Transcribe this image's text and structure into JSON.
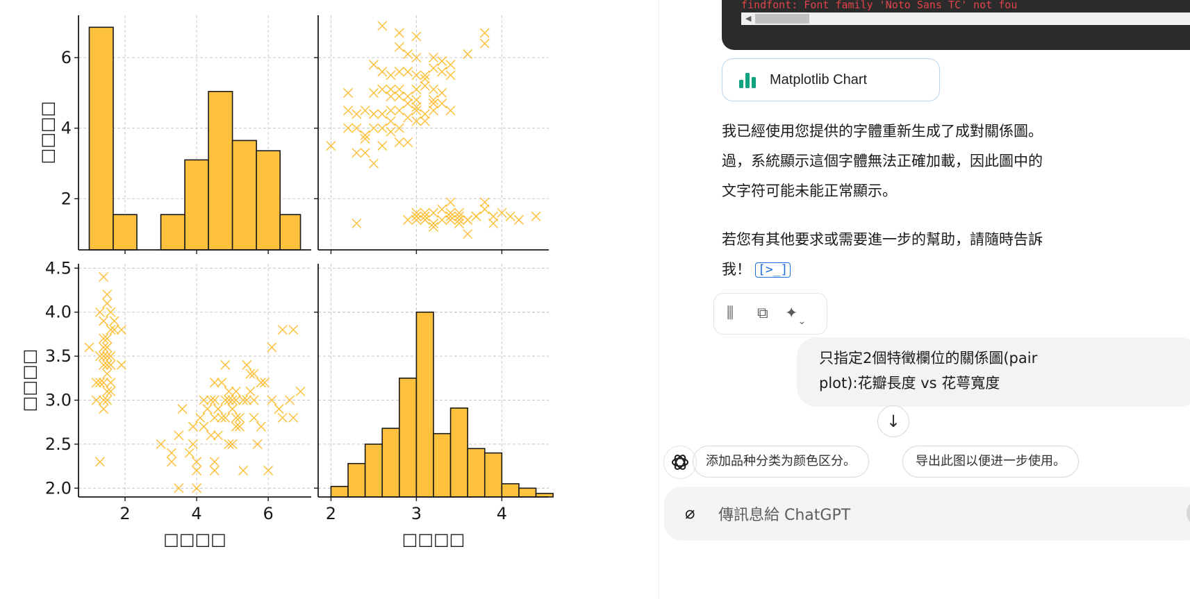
{
  "chart_data": {
    "type": "pair-plot",
    "panels": [
      {
        "position": "top-left",
        "type": "histogram",
        "bins": [
          [
            1.0,
            1.67,
            37
          ],
          [
            1.67,
            2.33,
            13
          ],
          [
            2.33,
            3.0,
            0
          ],
          [
            3.0,
            3.67,
            3
          ],
          [
            3.67,
            4.33,
            8
          ],
          [
            4.33,
            5.0,
            26
          ],
          [
            5.0,
            5.67,
            29
          ],
          [
            5.67,
            6.33,
            18
          ],
          [
            6.33,
            6.9,
            11
          ]
        ],
        "density_values": [
          6.86,
          1.55,
          0,
          1.55,
          3.1,
          5.04,
          3.65,
          3.36,
          1.55
        ],
        "xlim": [
          0.7,
          7.2
        ],
        "ylim": [
          0.55,
          7.2
        ],
        "xticks": [
          2,
          4,
          6
        ],
        "yticks": [
          2,
          4,
          6
        ],
        "ylabel": "□□□□",
        "grid": true
      },
      {
        "position": "top-right",
        "type": "scatter",
        "marker": "x",
        "xlim": [
          1.85,
          4.55
        ],
        "ylim": [
          0.55,
          7.2
        ],
        "xticks": [
          2,
          3,
          4
        ],
        "yticks": [
          2,
          4,
          6
        ],
        "grid": true,
        "points": [
          [
            2.6,
            6.9
          ],
          [
            2.8,
            6.7
          ],
          [
            3.0,
            6.6
          ],
          [
            2.8,
            6.3
          ],
          [
            2.9,
            6.1
          ],
          [
            3.0,
            6.0
          ],
          [
            3.2,
            6.0
          ],
          [
            3.3,
            5.9
          ],
          [
            3.4,
            5.8
          ],
          [
            3.6,
            6.1
          ],
          [
            3.8,
            6.7
          ],
          [
            3.8,
            6.4
          ],
          [
            2.5,
            5.8
          ],
          [
            2.6,
            5.6
          ],
          [
            2.7,
            5.5
          ],
          [
            2.8,
            5.6
          ],
          [
            2.9,
            5.6
          ],
          [
            3.0,
            5.5
          ],
          [
            3.1,
            5.5
          ],
          [
            3.2,
            5.7
          ],
          [
            3.3,
            5.6
          ],
          [
            3.4,
            5.5
          ],
          [
            3.1,
            5.4
          ],
          [
            2.6,
            5.1
          ],
          [
            2.7,
            5.1
          ],
          [
            2.8,
            5.1
          ],
          [
            3.0,
            5.1
          ],
          [
            3.1,
            5.2
          ],
          [
            3.2,
            5.1
          ],
          [
            2.5,
            5.0
          ],
          [
            2.7,
            4.9
          ],
          [
            2.8,
            4.9
          ],
          [
            2.9,
            4.9
          ],
          [
            3.0,
            4.8
          ],
          [
            3.2,
            4.8
          ],
          [
            3.3,
            5.0
          ],
          [
            3.0,
            4.6
          ],
          [
            3.2,
            4.7
          ],
          [
            2.2,
            5.0
          ],
          [
            2.2,
            4.5
          ],
          [
            2.3,
            4.4
          ],
          [
            2.4,
            4.5
          ],
          [
            2.5,
            4.4
          ],
          [
            2.6,
            4.4
          ],
          [
            2.7,
            4.5
          ],
          [
            2.8,
            4.5
          ],
          [
            2.9,
            4.3
          ],
          [
            3.0,
            4.2
          ],
          [
            2.7,
            4.2
          ],
          [
            2.8,
            4.0
          ],
          [
            2.9,
            4.7
          ],
          [
            3.0,
            4.5
          ],
          [
            3.1,
            4.4
          ],
          [
            3.2,
            4.5
          ],
          [
            3.3,
            4.7
          ],
          [
            3.4,
            4.5
          ],
          [
            2.3,
            4.0
          ],
          [
            2.4,
            3.8
          ],
          [
            2.5,
            4.0
          ],
          [
            2.6,
            4.0
          ],
          [
            2.5,
            3.0
          ],
          [
            2.4,
            3.3
          ],
          [
            2.3,
            3.3
          ],
          [
            2.0,
            3.5
          ],
          [
            2.6,
            3.5
          ],
          [
            2.7,
            3.9
          ],
          [
            2.8,
            3.6
          ],
          [
            2.9,
            3.6
          ],
          [
            3.1,
            4.2
          ],
          [
            2.2,
            4.0
          ],
          [
            2.4,
            3.7
          ],
          [
            2.3,
            1.3
          ],
          [
            3.0,
            1.4
          ],
          [
            3.1,
            1.5
          ],
          [
            3.2,
            1.3
          ],
          [
            3.3,
            1.4
          ],
          [
            3.4,
            1.6
          ],
          [
            3.5,
            1.5
          ],
          [
            3.6,
            1.4
          ],
          [
            3.7,
            1.5
          ],
          [
            3.8,
            1.7
          ],
          [
            3.9,
            1.5
          ],
          [
            4.0,
            1.6
          ],
          [
            4.1,
            1.5
          ],
          [
            4.2,
            1.4
          ],
          [
            4.4,
            1.5
          ],
          [
            3.2,
            1.6
          ],
          [
            3.4,
            1.9
          ],
          [
            3.5,
            1.3
          ],
          [
            3.6,
            1.0
          ],
          [
            3.8,
            1.9
          ],
          [
            2.9,
            1.4
          ],
          [
            3.0,
            1.6
          ],
          [
            3.1,
            1.4
          ],
          [
            3.3,
            1.7
          ],
          [
            3.4,
            1.4
          ],
          [
            3.5,
            1.6
          ],
          [
            3.6,
            1.4
          ],
          [
            3.7,
            1.5
          ],
          [
            3.9,
            1.3
          ],
          [
            3.0,
            1.5
          ],
          [
            3.2,
            1.2
          ],
          [
            3.4,
            1.5
          ],
          [
            3.5,
            1.4
          ],
          [
            3.1,
            1.6
          ]
        ]
      },
      {
        "position": "bottom-left",
        "type": "scatter",
        "marker": "x",
        "xlim": [
          0.7,
          7.2
        ],
        "ylim": [
          1.9,
          4.55
        ],
        "xticks": [
          2,
          4,
          6
        ],
        "yticks": [
          2.0,
          2.5,
          3.0,
          3.5,
          4.0,
          4.5
        ],
        "xlabel": "□□□□",
        "ylabel": "□□□□",
        "grid": true,
        "points": [
          [
            1.4,
            4.4
          ],
          [
            1.5,
            4.2
          ],
          [
            1.5,
            4.1
          ],
          [
            1.6,
            4.0
          ],
          [
            1.3,
            4.0
          ],
          [
            1.4,
            3.9
          ],
          [
            1.7,
            3.9
          ],
          [
            1.6,
            3.8
          ],
          [
            1.9,
            3.8
          ],
          [
            1.7,
            3.8
          ],
          [
            1.4,
            3.7
          ],
          [
            1.5,
            3.7
          ],
          [
            1.5,
            3.6
          ],
          [
            1.4,
            3.6
          ],
          [
            1.6,
            3.5
          ],
          [
            1.3,
            3.5
          ],
          [
            1.4,
            3.5
          ],
          [
            1.5,
            3.4
          ],
          [
            1.6,
            3.4
          ],
          [
            1.9,
            3.4
          ],
          [
            1.4,
            3.4
          ],
          [
            1.5,
            3.3
          ],
          [
            1.6,
            3.2
          ],
          [
            1.3,
            3.2
          ],
          [
            1.4,
            3.2
          ],
          [
            1.5,
            3.1
          ],
          [
            1.6,
            3.1
          ],
          [
            1.4,
            3.0
          ],
          [
            1.5,
            3.0
          ],
          [
            1.2,
            3.0
          ],
          [
            1.4,
            2.9
          ],
          [
            1.3,
            2.3
          ],
          [
            1.0,
            3.6
          ],
          [
            1.5,
            3.5
          ],
          [
            1.2,
            3.2
          ],
          [
            3.3,
            2.4
          ],
          [
            3.5,
            2.0
          ],
          [
            3.0,
            2.5
          ],
          [
            3.3,
            2.3
          ],
          [
            3.5,
            2.6
          ],
          [
            3.6,
            2.9
          ],
          [
            3.8,
            2.4
          ],
          [
            3.9,
            2.7
          ],
          [
            3.9,
            2.5
          ],
          [
            4.0,
            2.0
          ],
          [
            4.0,
            2.2
          ],
          [
            4.0,
            2.3
          ],
          [
            4.1,
            2.8
          ],
          [
            4.2,
            3.0
          ],
          [
            4.3,
            2.9
          ],
          [
            4.4,
            3.0
          ],
          [
            4.4,
            2.6
          ],
          [
            4.5,
            2.2
          ],
          [
            4.5,
            2.3
          ],
          [
            4.5,
            2.8
          ],
          [
            4.5,
            3.0
          ],
          [
            4.5,
            3.2
          ],
          [
            4.6,
            2.9
          ],
          [
            4.7,
            3.2
          ],
          [
            4.7,
            2.8
          ],
          [
            4.8,
            2.8
          ],
          [
            4.8,
            3.4
          ],
          [
            4.9,
            2.5
          ],
          [
            4.9,
            3.1
          ],
          [
            5.0,
            2.5
          ],
          [
            5.0,
            3.0
          ],
          [
            5.1,
            2.7
          ],
          [
            5.1,
            3.0
          ],
          [
            5.2,
            2.7
          ],
          [
            5.3,
            2.2
          ],
          [
            5.4,
            3.0
          ],
          [
            5.5,
            3.1
          ],
          [
            5.6,
            3.0
          ],
          [
            5.6,
            2.8
          ],
          [
            5.7,
            2.5
          ],
          [
            5.8,
            3.2
          ],
          [
            5.9,
            3.2
          ],
          [
            6.0,
            2.2
          ],
          [
            6.1,
            3.0
          ],
          [
            6.4,
            2.8
          ],
          [
            6.6,
            3.0
          ],
          [
            6.7,
            2.8
          ],
          [
            6.9,
            3.1
          ],
          [
            6.7,
            3.8
          ],
          [
            6.4,
            3.8
          ],
          [
            6.1,
            3.6
          ],
          [
            5.1,
            3.1
          ],
          [
            5.4,
            3.4
          ],
          [
            5.6,
            3.3
          ],
          [
            5.1,
            2.8
          ],
          [
            4.8,
            3.0
          ],
          [
            5.0,
            2.9
          ],
          [
            5.2,
            2.8
          ],
          [
            5.5,
            3.3
          ],
          [
            5.8,
            2.7
          ],
          [
            6.3,
            2.9
          ],
          [
            4.2,
            2.7
          ],
          [
            4.6,
            2.6
          ],
          [
            4.9,
            3.0
          ],
          [
            5.3,
            3.0
          ]
        ]
      },
      {
        "position": "bottom-right",
        "type": "histogram",
        "bins": [
          [
            2.0,
            2.2,
            4
          ],
          [
            2.2,
            2.4,
            7
          ],
          [
            2.4,
            2.6,
            13
          ],
          [
            2.6,
            2.8,
            14
          ],
          [
            2.8,
            3.0,
            24
          ],
          [
            3.0,
            3.2,
            36
          ],
          [
            3.2,
            3.4,
            20
          ],
          [
            3.4,
            3.6,
            26
          ],
          [
            3.6,
            3.8,
            19
          ],
          [
            3.8,
            4.0,
            18
          ],
          [
            4.0,
            4.2,
            5
          ],
          [
            4.2,
            4.4,
            3
          ],
          [
            4.4,
            4.6,
            1
          ]
        ],
        "density_values": [
          2.02,
          2.28,
          2.5,
          2.68,
          3.25,
          4.0,
          2.62,
          2.91,
          2.45,
          2.4,
          2.05,
          2.0,
          1.94
        ],
        "xlim": [
          1.85,
          4.55
        ],
        "ylim": [
          1.9,
          4.55
        ],
        "xticks": [
          2,
          3,
          4
        ],
        "xlabel": "□□□□",
        "grid": true
      }
    ]
  },
  "code_block": {
    "line": "findfont: Font family 'Noto Sans TC' not fou"
  },
  "attachment": {
    "label": "Matplotlib Chart"
  },
  "assistant_message": {
    "lines": [
      "我已經使用您提供的字體重新生成了成對關係圖。",
      "過，系統顯示這個字體無法正確加載，因此圖中的",
      "文字符可能未能正常顯示。"
    ],
    "followup_lines": [
      "若您有其他要求或需要進一步的幫助，請隨時告訴",
      "我！"
    ],
    "tool_icon": "[>_]"
  },
  "user_message": {
    "lines": [
      "只指定2個特徵欄位的關係圖(pair",
      "plot):花瓣長度 vs 花萼寬度"
    ]
  },
  "suggestions": [
    "添加品种分类为颜色区分。",
    "导出此图以便进一步使用。"
  ],
  "composer": {
    "placeholder": "傳訊息給 ChatGPT"
  },
  "icons": {
    "action_voice": "waveform-icon",
    "action_copy": "copy-icon",
    "action_model": "sparkle-icon",
    "scroll": "arrow-down-icon",
    "attach": "paperclip-icon"
  },
  "colors": {
    "bar": "#fec13d",
    "marker": "#fec13d",
    "accent": "#1a6fd6",
    "error_text": "#e0444a"
  }
}
